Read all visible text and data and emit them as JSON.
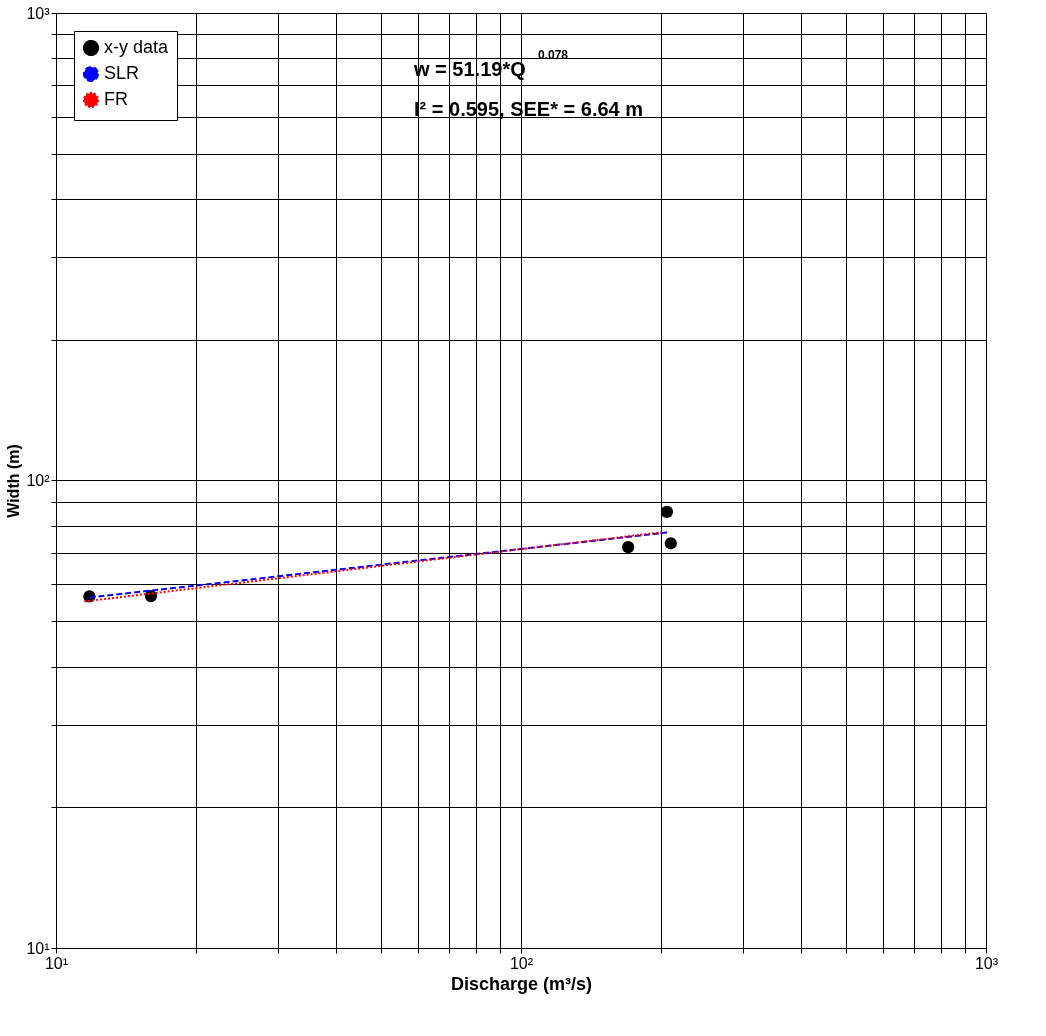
{
  "chart_data": {
    "type": "scatter",
    "xlabel": "Discharge (m³/s)",
    "ylabel": "Width (m)",
    "series": [
      {
        "name": "x-y data",
        "color": "#000000",
        "marker": "circle",
        "x": [
          11.8,
          16,
          170,
          206,
          210
        ],
        "values": [
          56.5,
          56.6,
          72,
          85.7,
          73.4
        ]
      },
      {
        "name": "SLR",
        "type": "line",
        "color": "#0000ff",
        "line_style": "dashed",
        "marker": "none",
        "x": [
          11.8,
          206
        ],
        "values": [
          56.2,
          77.4
        ]
      },
      {
        "name": "FR",
        "type": "line",
        "color": "#ff0000",
        "line_style": "dotted",
        "marker": "none",
        "x": [
          11.5,
          203
        ],
        "values": [
          55.1,
          77.6
        ]
      }
    ],
    "log": "xy",
    "grid": true,
    "legend": "top left",
    "xlim": [
      10,
      1000
    ],
    "ylim": [
      10,
      1000
    ],
    "xticks": [
      {
        "value": 10,
        "label": "10¹"
      },
      {
        "value": 20,
        "label": null
      },
      {
        "value": 30,
        "label": null
      },
      {
        "value": 40,
        "label": null
      },
      {
        "value": 50,
        "label": null
      },
      {
        "value": 60,
        "label": null
      },
      {
        "value": 70,
        "label": null
      },
      {
        "value": 80,
        "label": null
      },
      {
        "value": 90,
        "label": null
      },
      {
        "value": 100,
        "label": "10²"
      },
      {
        "value": 200,
        "label": null
      },
      {
        "value": 300,
        "label": null
      },
      {
        "value": 400,
        "label": null
      },
      {
        "value": 500,
        "label": null
      },
      {
        "value": 600,
        "label": null
      },
      {
        "value": 700,
        "label": null
      },
      {
        "value": 800,
        "label": null
      },
      {
        "value": 900,
        "label": null
      },
      {
        "value": 1000,
        "label": "10³"
      }
    ],
    "yticks": [
      {
        "value": 10,
        "label": "10¹"
      },
      {
        "value": 20,
        "label": null
      },
      {
        "value": 30,
        "label": null
      },
      {
        "value": 40,
        "label": null
      },
      {
        "value": 50,
        "label": null
      },
      {
        "value": 60,
        "label": null
      },
      {
        "value": 70,
        "label": null
      },
      {
        "value": 80,
        "label": null
      },
      {
        "value": 90,
        "label": null
      },
      {
        "value": 100,
        "label": "10²"
      },
      {
        "value": 200,
        "label": null
      },
      {
        "value": 300,
        "label": null
      },
      {
        "value": 400,
        "label": null
      },
      {
        "value": 500,
        "label": null
      },
      {
        "value": 600,
        "label": null
      },
      {
        "value": 700,
        "label": null
      },
      {
        "value": 800,
        "label": null
      },
      {
        "value": 900,
        "label": null
      },
      {
        "value": 1000,
        "label": "10³"
      }
    ],
    "annotations": [
      "w = 51.19*Q $^{0.078}$",
      "I² = 0.595, SEE* = 6.64 m"
    ]
  }
}
